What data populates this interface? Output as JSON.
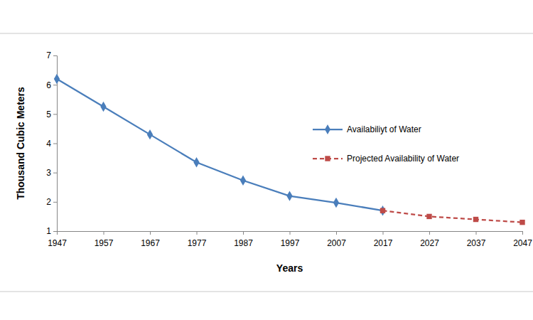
{
  "chart_data": {
    "type": "line",
    "x_label": "Years",
    "y_label": "Thousand Cubic Meters",
    "categories": [
      "1947",
      "1957",
      "1967",
      "1977",
      "1987",
      "1997",
      "2007",
      "2017",
      "2027",
      "2037",
      "2047"
    ],
    "series": [
      {
        "name": "Availabiliyt of Water",
        "color": "#4a7ebb",
        "marker": "diamond",
        "line_style": "solid",
        "values": [
          6.2,
          5.25,
          4.3,
          3.35,
          2.73,
          2.2,
          1.97,
          1.7,
          null,
          null,
          null
        ]
      },
      {
        "name": "Projected Availability of Water",
        "color": "#be4b48",
        "marker": "square",
        "line_style": "dashed",
        "values": [
          null,
          null,
          null,
          null,
          null,
          null,
          null,
          1.7,
          1.5,
          1.4,
          1.3
        ]
      }
    ],
    "ylim": [
      1,
      7
    ],
    "yticks": [
      1,
      2,
      3,
      4,
      5,
      6,
      7
    ],
    "grid": false,
    "legend": "right"
  }
}
